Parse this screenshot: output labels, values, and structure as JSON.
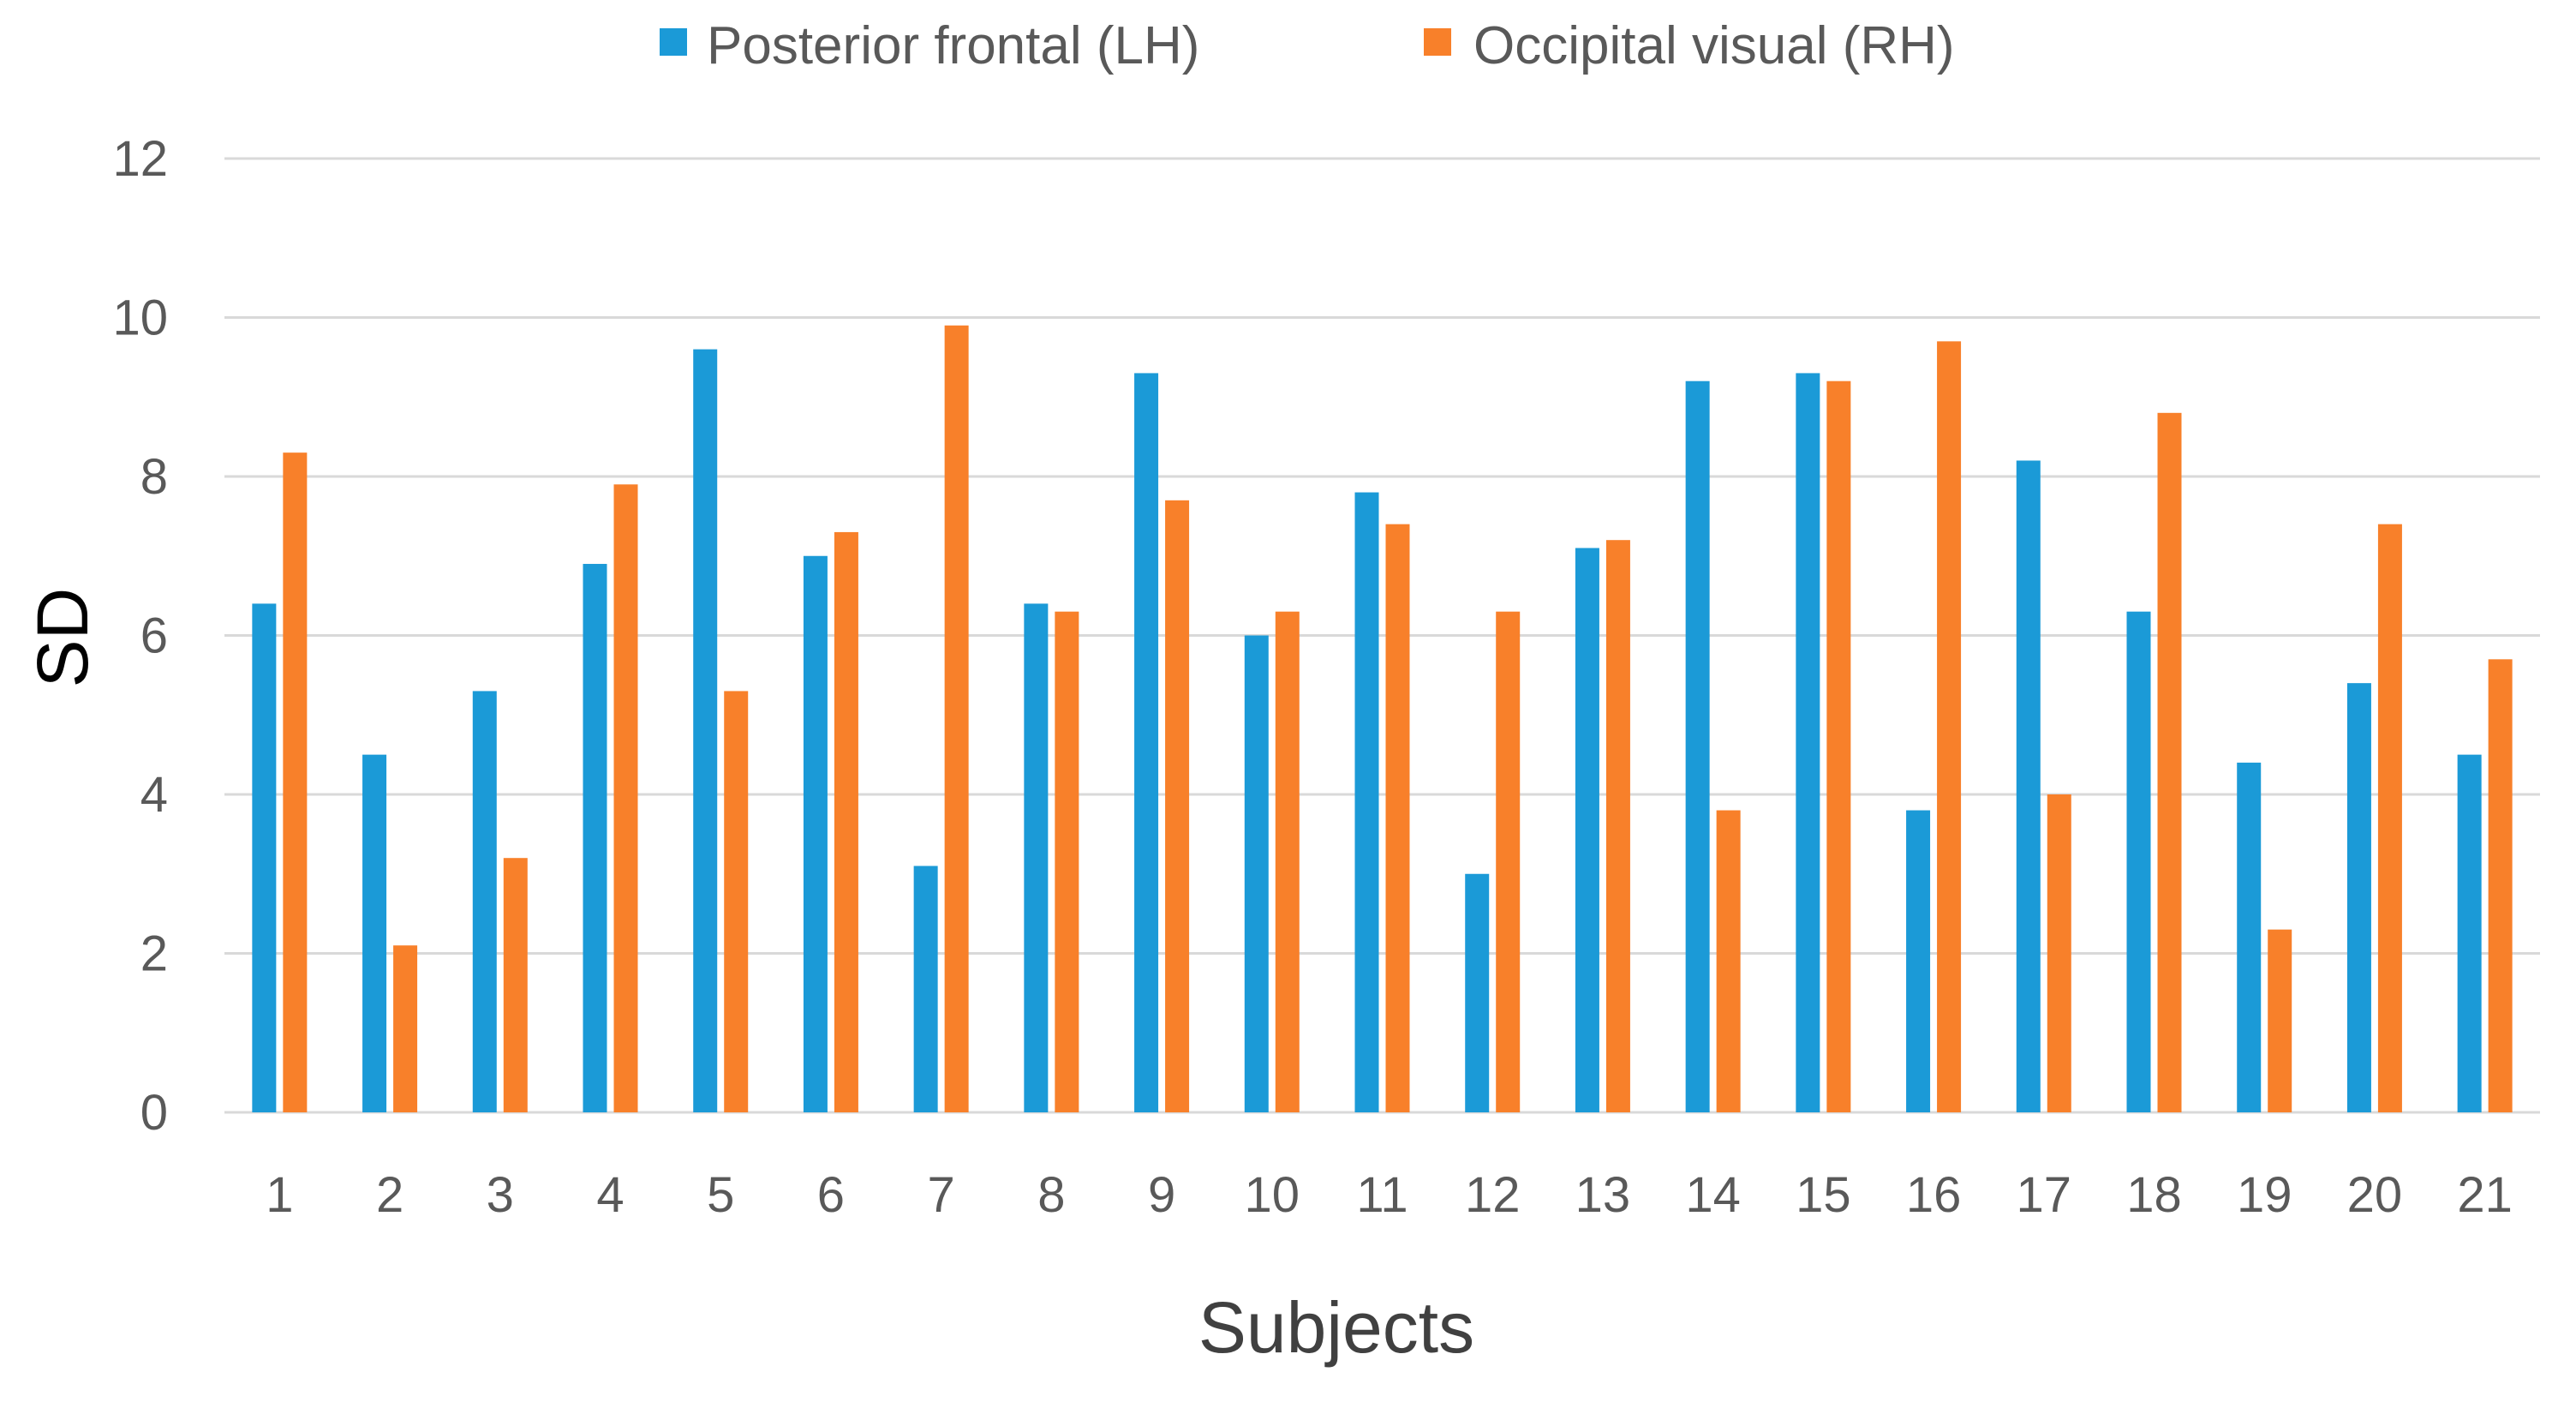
{
  "chart_data": {
    "type": "bar",
    "title": "",
    "xlabel": "Subjects",
    "ylabel": "SD",
    "ylim": [
      0,
      12
    ],
    "yticks": [
      0,
      2,
      4,
      6,
      8,
      10,
      12
    ],
    "grid": true,
    "legend_position": "top",
    "categories": [
      "1",
      "2",
      "3",
      "4",
      "5",
      "6",
      "7",
      "8",
      "9",
      "10",
      "11",
      "12",
      "13",
      "14",
      "15",
      "16",
      "17",
      "18",
      "19",
      "20",
      "21"
    ],
    "series": [
      {
        "name": "Posterior frontal (LH)",
        "color": "#1B9AD7",
        "values": [
          6.4,
          4.5,
          5.3,
          6.9,
          9.6,
          7.0,
          3.1,
          6.4,
          9.3,
          6.0,
          7.8,
          3.0,
          7.1,
          9.2,
          9.3,
          3.8,
          8.2,
          6.3,
          4.4,
          5.4,
          4.5
        ]
      },
      {
        "name": "Occipital visual (RH)",
        "color": "#F8802A",
        "values": [
          8.3,
          2.1,
          3.2,
          7.9,
          5.3,
          7.3,
          9.9,
          6.3,
          7.7,
          6.3,
          7.4,
          6.3,
          7.2,
          3.8,
          9.2,
          9.7,
          4.0,
          8.8,
          2.3,
          7.4,
          5.7
        ]
      }
    ]
  },
  "colors": {
    "gridline": "#D9D9D9",
    "axis_text": "#595959",
    "ylabel_text": "#000000",
    "xlabel_text": "#404040"
  }
}
